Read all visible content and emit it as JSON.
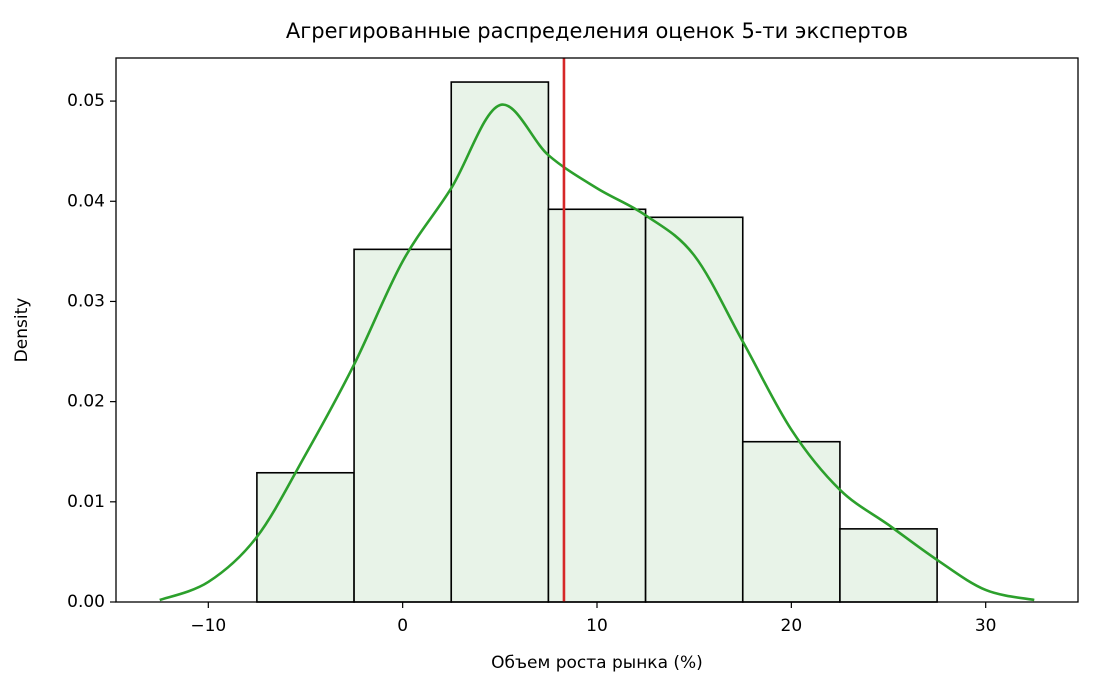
{
  "chart_data": {
    "type": "histogram",
    "title": "Агрегированные распределения оценок 5-ти экспертов",
    "x_label": "Объем роста рынка (%)",
    "y_label": "Density",
    "bins": [
      -7.5,
      -2.5,
      2.5,
      7.5,
      12.5,
      17.5,
      22.5,
      27.5
    ],
    "values": [
      0.0129,
      0.0352,
      0.0519,
      0.0392,
      0.0384,
      0.016,
      0.0073
    ],
    "color": "#e8f3e8",
    "edgecolor": "#000000",
    "kde": {
      "color": "#2ca02c",
      "x": [
        -12.5,
        -10,
        -7.5,
        -5,
        -2.5,
        0,
        2.5,
        5,
        7.5,
        10,
        12.5,
        15,
        17.5,
        20,
        22.5,
        25,
        27.5,
        30,
        32.5
      ],
      "values": [
        0.0002,
        0.002,
        0.0065,
        0.0147,
        0.0237,
        0.034,
        0.0413,
        0.0496,
        0.0446,
        0.0413,
        0.0386,
        0.0346,
        0.026,
        0.0172,
        0.0112,
        0.0077,
        0.0042,
        0.0012,
        0.0002
      ]
    },
    "vline": {
      "x": 8.3,
      "color": "#d62728"
    },
    "xlim": [
      -14.75,
      34.75
    ],
    "ylim": [
      0,
      0.0543
    ],
    "xticks": [
      {
        "value": -10,
        "label": "−10"
      },
      0,
      10,
      20,
      30
    ],
    "yticks": [
      {
        "value": 0,
        "label": "0.00"
      },
      0.01,
      0.02,
      0.03,
      0.04,
      0.05
    ]
  }
}
